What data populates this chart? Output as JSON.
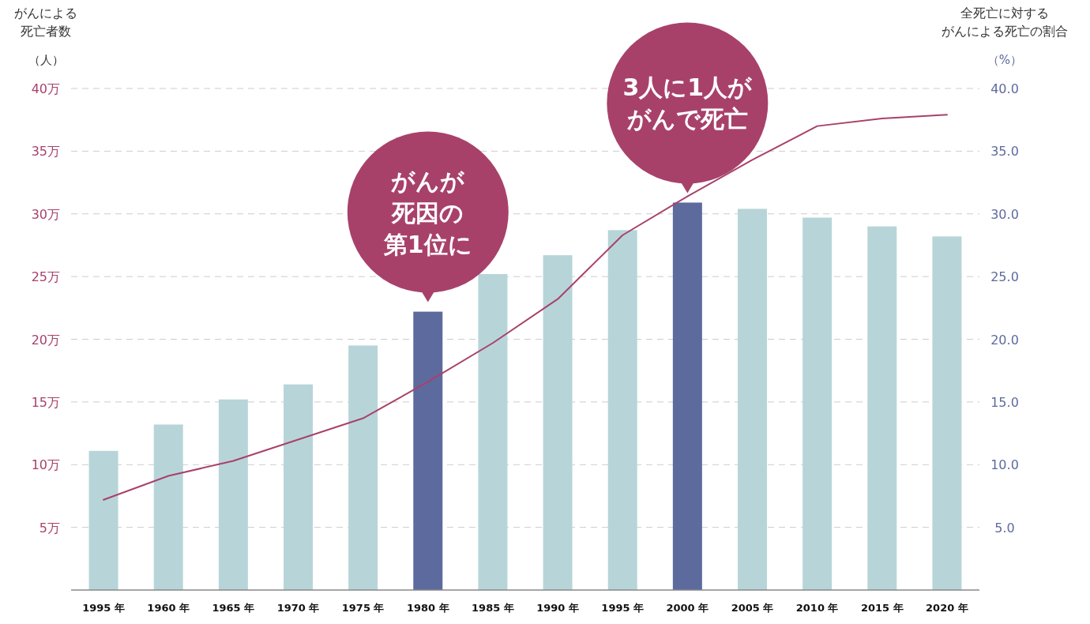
{
  "chart_data": {
    "type": "bar",
    "ylabel": "がんによる死亡者数",
    "y2label": "全死亡に対するがんによる死亡の割合",
    "categories": [
      "1995 年",
      "1960 年",
      "1965 年",
      "1970 年",
      "1975 年",
      "1980 年",
      "1985 年",
      "1990 年",
      "1995 年",
      "2000 年",
      "2005 年",
      "2010 年",
      "2015 年",
      "2020 年"
    ],
    "series": [
      {
        "colors": [
          "#b7d5d8",
          "#b7d5d8",
          "#b7d5d8",
          "#b7d5d8",
          "#b7d5d8",
          "#5d6a9e",
          "#b7d5d8",
          "#b7d5d8",
          "#b7d5d8",
          "#5d6a9e",
          "#b7d5d8",
          "#b7d5d8",
          "#b7d5d8",
          "#b7d5d8"
        ],
        "values": [
          11.1,
          13.2,
          15.2,
          16.4,
          19.5,
          22.2,
          25.2,
          26.7,
          28.7,
          30.9,
          30.4,
          29.7,
          29.0,
          28.2
        ]
      },
      {
        "type": "line",
        "axis": "y2",
        "color": "#a8416a",
        "values": [
          7.2,
          9.1,
          10.3,
          12.0,
          13.7,
          16.6,
          19.7,
          23.2,
          28.3,
          31.4,
          34.3,
          37.0,
          37.6,
          37.9
        ]
      }
    ],
    "ylim": [
      0,
      40
    ],
    "yticks": [
      {
        "value": 5,
        "label": "5万"
      },
      {
        "value": 10,
        "label": "10万"
      },
      {
        "value": 15,
        "label": "15万"
      },
      {
        "value": 20,
        "label": "20万"
      },
      {
        "value": 25,
        "label": "25万"
      },
      {
        "value": 30,
        "label": "30万"
      },
      {
        "value": 35,
        "label": "35万"
      },
      {
        "value": 40,
        "label": "40万"
      }
    ],
    "y2lim": [
      0,
      40
    ],
    "y2ticks": [
      {
        "value": 5,
        "label": "5.0"
      },
      {
        "value": 10,
        "label": "10.0"
      },
      {
        "value": 15,
        "label": "15.0"
      },
      {
        "value": 20,
        "label": "20.0"
      },
      {
        "value": 25,
        "label": "25.0"
      },
      {
        "value": 30,
        "label": "30.0"
      },
      {
        "value": 35,
        "label": "35.0"
      },
      {
        "value": 40,
        "label": "40.0"
      }
    ],
    "grid": "y",
    "annotations": [
      "（人）",
      "（%）",
      "がんが",
      "死因の",
      {
        "text": "第1位に",
        "x": "1980 年",
        "y": 22.2
      },
      "3人に1人が",
      {
        "text": "がんで死亡",
        "x": "2000 年",
        "y": 30.9
      }
    ]
  }
}
